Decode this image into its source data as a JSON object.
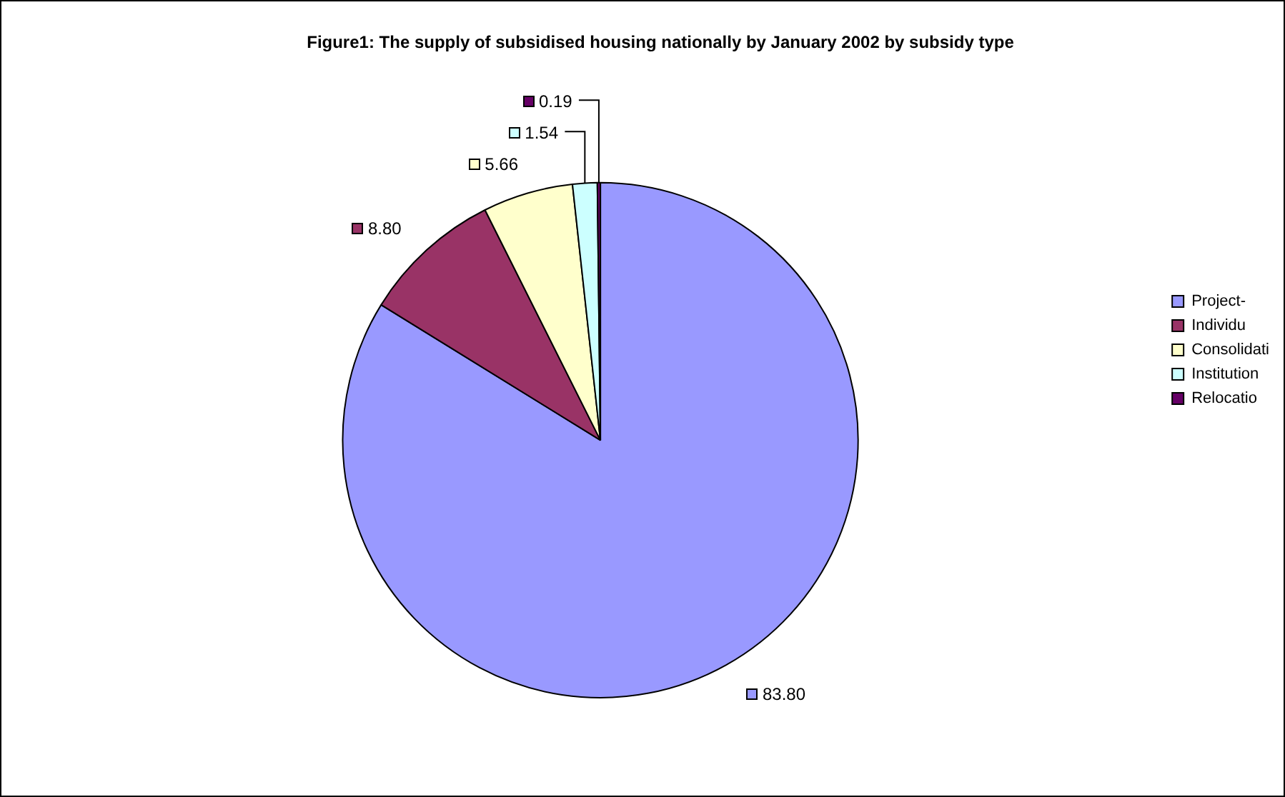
{
  "chart_data": {
    "type": "pie",
    "title": "Figure1: The supply of subsidised housing nationally by January 2002 by subsidy type",
    "categories": [
      "Project-",
      "Individu",
      "Consolidati",
      "Institution",
      "Relocatio"
    ],
    "values": [
      83.8,
      8.8,
      5.66,
      1.54,
      0.19
    ],
    "colors": [
      "#9999ff",
      "#993366",
      "#ffffcc",
      "#ccffff",
      "#660066"
    ],
    "value_labels": [
      "83.80",
      "8.80",
      "5.66",
      "1.54",
      "0.19"
    ],
    "legend": "right"
  }
}
